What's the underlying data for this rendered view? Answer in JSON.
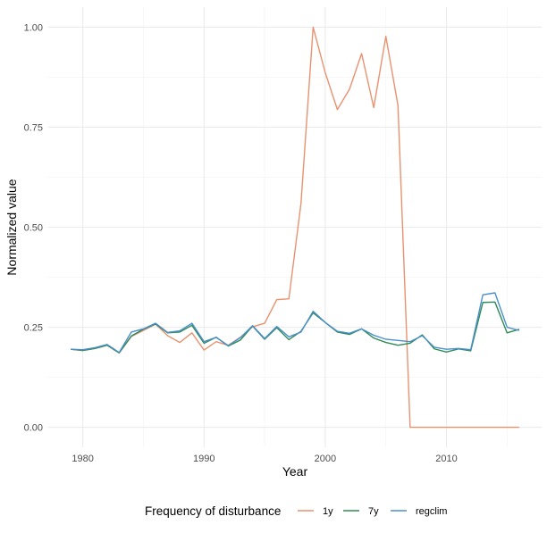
{
  "chart_data": {
    "type": "line",
    "title": "",
    "xlabel": "Year",
    "ylabel": "Normalized value",
    "xlim": [
      1977.15,
      2017.85
    ],
    "ylim": [
      -0.05,
      1.05
    ],
    "xticks": [
      1980,
      1990,
      2000,
      2010
    ],
    "xtick_labels": [
      "1980",
      "1990",
      "2000",
      "2010"
    ],
    "yticks": [
      0,
      0.25,
      0.5,
      0.75,
      1
    ],
    "ytick_labels": [
      "0.00",
      "0.25",
      "0.50",
      "0.75",
      "1.00"
    ],
    "grid": true,
    "legend_position": "bottom",
    "legend_title": "Frequency of disturbance",
    "x": [
      1979,
      1980,
      1981,
      1982,
      1983,
      1984,
      1985,
      1986,
      1987,
      1988,
      1989,
      1990,
      1991,
      1992,
      1993,
      1994,
      1995,
      1996,
      1997,
      1998,
      1999,
      2000,
      2001,
      2002,
      2003,
      2004,
      2005,
      2006,
      2007,
      2008,
      2009,
      2010,
      2011,
      2012,
      2013,
      2014,
      2015,
      2016
    ],
    "series": [
      {
        "name": "1y",
        "color": "#E8926F",
        "values": [
          0.195,
          0.192,
          0.197,
          0.205,
          0.186,
          0.227,
          0.242,
          0.258,
          0.229,
          0.212,
          0.236,
          0.193,
          0.214,
          0.205,
          0.225,
          0.251,
          0.26,
          0.319,
          0.321,
          0.56,
          1.0,
          0.886,
          0.794,
          0.845,
          0.934,
          0.799,
          0.977,
          0.804,
          0.0,
          0.0,
          0.0,
          0.0,
          0.0,
          0.0,
          0.0,
          0.0,
          0.0,
          0.0
        ]
      },
      {
        "name": "7y",
        "color": "#2E8B57",
        "values": [
          0.195,
          0.192,
          0.197,
          0.205,
          0.186,
          0.228,
          0.245,
          0.258,
          0.236,
          0.238,
          0.255,
          0.21,
          0.225,
          0.203,
          0.218,
          0.253,
          0.22,
          0.249,
          0.219,
          0.24,
          0.286,
          0.262,
          0.238,
          0.232,
          0.246,
          0.223,
          0.212,
          0.205,
          0.21,
          0.231,
          0.196,
          0.188,
          0.196,
          0.191,
          0.312,
          0.313,
          0.236,
          0.245
        ]
      },
      {
        "name": "regclim",
        "color": "#4C8FCC",
        "values": [
          0.195,
          0.194,
          0.199,
          0.207,
          0.187,
          0.238,
          0.246,
          0.26,
          0.237,
          0.241,
          0.26,
          0.214,
          0.225,
          0.204,
          0.224,
          0.254,
          0.222,
          0.252,
          0.226,
          0.238,
          0.29,
          0.262,
          0.24,
          0.235,
          0.246,
          0.23,
          0.22,
          0.217,
          0.214,
          0.229,
          0.2,
          0.195,
          0.197,
          0.194,
          0.331,
          0.336,
          0.25,
          0.242
        ]
      }
    ]
  }
}
